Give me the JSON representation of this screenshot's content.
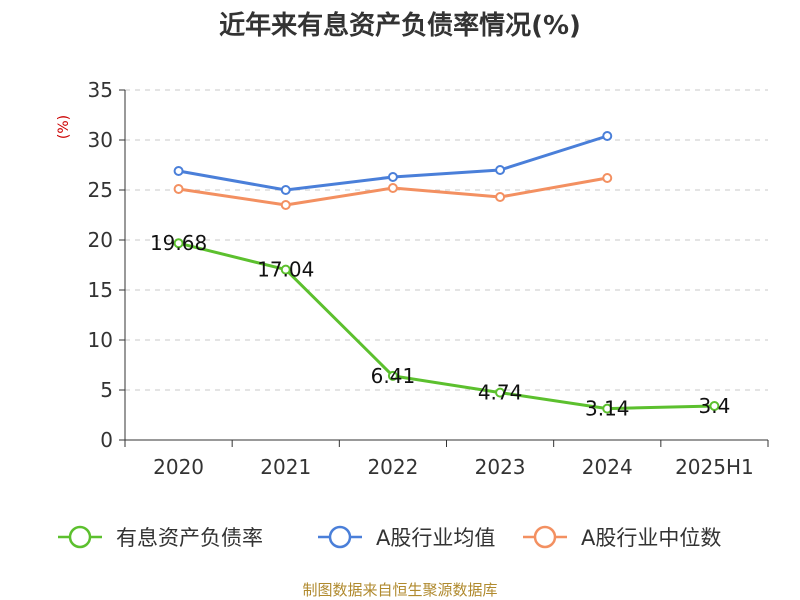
{
  "chart_data": {
    "type": "line",
    "title": "近年来有息资产负债率情况(%)",
    "ylabel": "(%)",
    "xlabel": "",
    "categories": [
      "2020",
      "2021",
      "2022",
      "2023",
      "2024",
      "2025H1"
    ],
    "ylim": [
      0,
      35
    ],
    "yticks": [
      0,
      5,
      10,
      15,
      20,
      25,
      30,
      35
    ],
    "grid": true,
    "legend_position": "bottom",
    "series": [
      {
        "name": "有息资产负债率",
        "color": "#5cc02e",
        "values": [
          19.68,
          17.04,
          6.41,
          4.74,
          3.14,
          3.4
        ],
        "labels": [
          "19.68",
          "17.04",
          "6.41",
          "4.74",
          "3.14",
          "3.4"
        ]
      },
      {
        "name": "A股行业均值",
        "color": "#4a7fd9",
        "values": [
          26.9,
          25.0,
          26.3,
          27.0,
          30.4,
          null
        ]
      },
      {
        "name": "A股行业中位数",
        "color": "#f39061",
        "values": [
          25.1,
          23.5,
          25.2,
          24.3,
          26.2,
          null
        ]
      }
    ],
    "source": "制图数据来自恒生聚源数据库"
  }
}
